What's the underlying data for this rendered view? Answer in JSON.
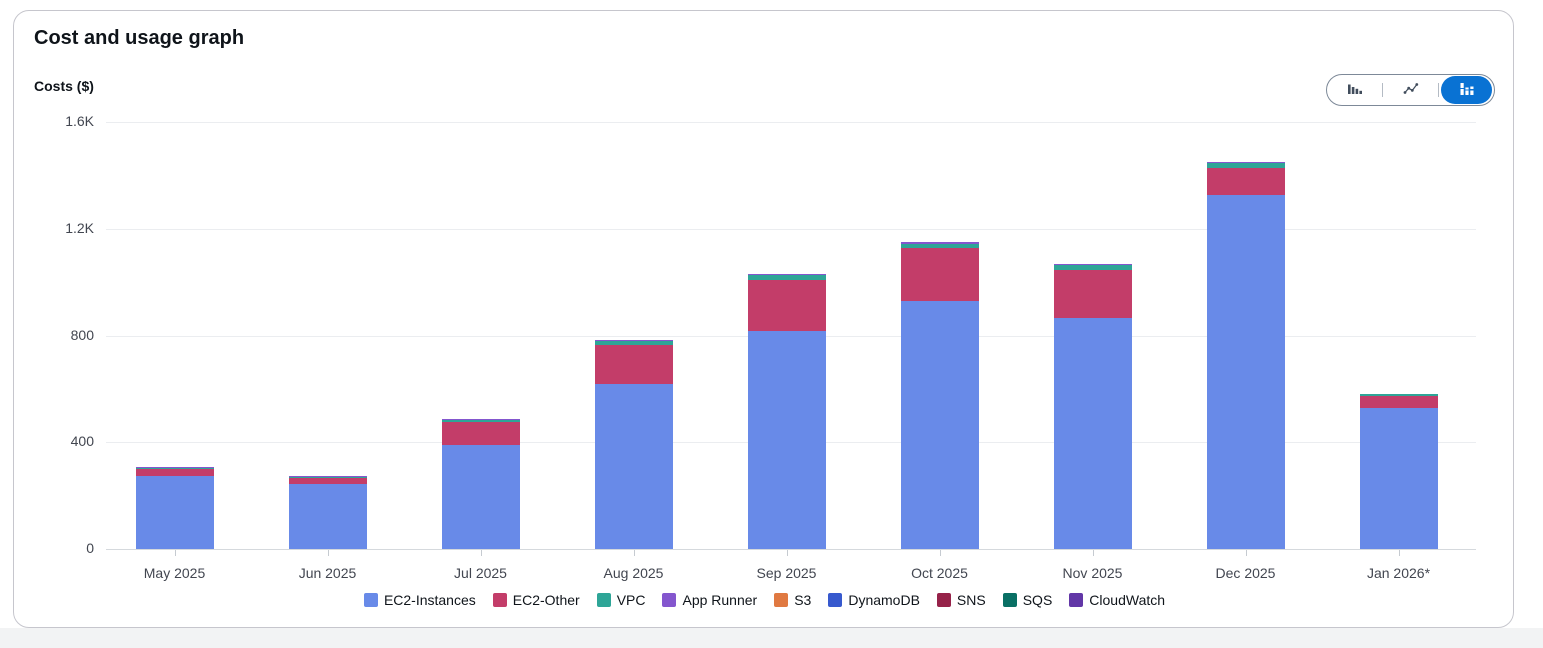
{
  "card": {
    "title": "Cost and usage graph",
    "y_axis_title": "Costs ($)"
  },
  "controls": {
    "chart_type_options": [
      {
        "label": "grouped-bar-chart",
        "icon": "bar-chart-icon",
        "selected": false
      },
      {
        "label": "line-chart",
        "icon": "line-chart-icon",
        "selected": false
      },
      {
        "label": "stacked-bar-chart",
        "icon": "stacked-bar-chart-icon",
        "selected": true
      }
    ],
    "selected_background": "#0972d3",
    "icon_color": "#414d5c"
  },
  "chart_data": {
    "type": "bar",
    "stacked": true,
    "title": "Cost and usage graph",
    "ylabel": "Costs ($)",
    "xlabel": "",
    "ylim": [
      0,
      1600
    ],
    "grid": true,
    "legend_position": "bottom",
    "yticks": [
      {
        "label": "0",
        "value": 0
      },
      {
        "label": "400",
        "value": 400
      },
      {
        "label": "800",
        "value": 800
      },
      {
        "label": "1.2K",
        "value": 1200
      },
      {
        "label": "1.6K",
        "value": 1600
      }
    ],
    "categories": [
      "May 2025",
      "Jun 2025",
      "Jul 2025",
      "Aug 2025",
      "Sep 2025",
      "Oct 2025",
      "Nov 2025",
      "Dec 2025",
      "Jan 2026*"
    ],
    "series": [
      {
        "name": "EC2-Instances",
        "color": "#688ae8",
        "values": [
          274,
          242,
          390,
          617,
          818,
          930,
          865,
          1327,
          530
        ]
      },
      {
        "name": "EC2-Other",
        "color": "#c33d69",
        "values": [
          26,
          21,
          88,
          147,
          190,
          200,
          180,
          102,
          46
        ]
      },
      {
        "name": "VPC",
        "color": "#2ea597",
        "values": [
          3,
          2,
          7,
          16,
          20,
          15,
          18,
          18,
          8
        ]
      },
      {
        "name": "App Runner",
        "color": "#8456ce",
        "values": [
          3,
          2,
          2,
          3,
          4,
          7,
          4,
          4,
          0
        ]
      },
      {
        "name": "S3",
        "color": "#e07941",
        "values": [
          0,
          0,
          0,
          0,
          0,
          0,
          0,
          0,
          0
        ]
      },
      {
        "name": "DynamoDB",
        "color": "#3759ce",
        "values": [
          0,
          0,
          0,
          0,
          0,
          0,
          0,
          0,
          0
        ]
      },
      {
        "name": "SNS",
        "color": "#962249",
        "values": [
          0,
          0,
          0,
          0,
          0,
          0,
          0,
          0,
          0
        ]
      },
      {
        "name": "SQS",
        "color": "#096f64",
        "values": [
          0,
          0,
          0,
          0,
          0,
          0,
          0,
          0,
          0
        ]
      },
      {
        "name": "CloudWatch",
        "color": "#6237a7",
        "values": [
          0,
          0,
          0,
          0,
          0,
          0,
          0,
          0,
          0
        ]
      }
    ]
  }
}
